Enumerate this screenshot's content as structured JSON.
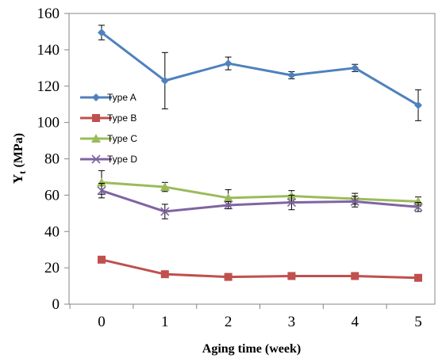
{
  "chart_data": {
    "type": "line",
    "xlabel": "Aging time (week)",
    "ylabel_main": "Y",
    "ylabel_sub": "t",
    "ylabel_unit": "(MPa)",
    "x": [
      0,
      1,
      2,
      3,
      4,
      5
    ],
    "x_ticks": [
      "0",
      "1",
      "2",
      "3",
      "4",
      "5"
    ],
    "ylim": [
      0,
      160
    ],
    "y_ticks": [
      "0",
      "20",
      "40",
      "60",
      "80",
      "100",
      "120",
      "140",
      "160"
    ],
    "grid": false,
    "legend_position": "left-middle",
    "series": [
      {
        "name": "Type A",
        "color": "#4f81bd",
        "marker": "diamond",
        "values": [
          149.5,
          123,
          132.5,
          126,
          130,
          109.5
        ],
        "errors": [
          4,
          15.5,
          3.5,
          2,
          2,
          8.5
        ]
      },
      {
        "name": "Type B",
        "color": "#c0504d",
        "marker": "square",
        "values": [
          24.5,
          16.5,
          15,
          15.5,
          15.5,
          14.5
        ],
        "errors": [
          1,
          1,
          1,
          1,
          1,
          1
        ]
      },
      {
        "name": "Type C",
        "color": "#9bbb59",
        "marker": "triangle",
        "values": [
          67,
          64.5,
          58.5,
          59.5,
          58,
          56.5
        ],
        "errors": [
          6.5,
          2.5,
          4.5,
          3,
          3,
          2.5
        ]
      },
      {
        "name": "Type D",
        "color": "#8064a2",
        "marker": "x",
        "values": [
          62.5,
          51,
          54.5,
          56,
          56.5,
          53.5
        ],
        "errors": [
          4,
          4,
          2,
          4,
          3,
          2.5
        ]
      }
    ]
  }
}
